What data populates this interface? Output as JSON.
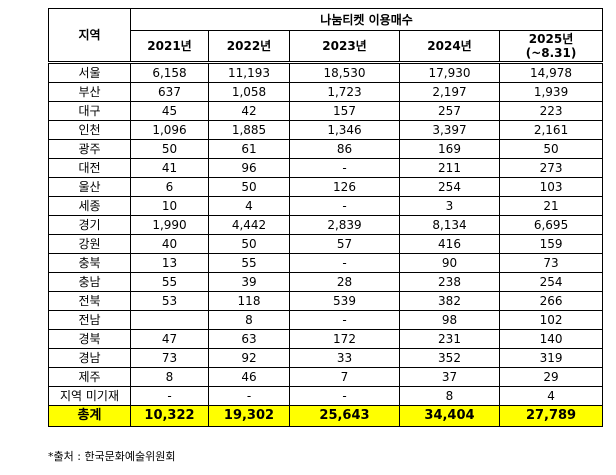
{
  "header": {
    "region": "지역",
    "title": "나눔티켓 이용매수",
    "years": [
      "2021년",
      "2022년",
      "2023년",
      "2024년",
      "2025년"
    ],
    "year_note": "(~8.31)"
  },
  "rows": [
    [
      "서울",
      "6,158",
      "11,193",
      "18,530",
      "17,930",
      "14,978"
    ],
    [
      "부산",
      "637",
      "1,058",
      "1,723",
      "2,197",
      "1,939"
    ],
    [
      "대구",
      "45",
      "42",
      "157",
      "257",
      "223"
    ],
    [
      "인천",
      "1,096",
      "1,885",
      "1,346",
      "3,397",
      "2,161"
    ],
    [
      "광주",
      "50",
      "61",
      "86",
      "169",
      "50"
    ],
    [
      "대전",
      "41",
      "96",
      "-",
      "211",
      "273"
    ],
    [
      "울산",
      "6",
      "50",
      "126",
      "254",
      "103"
    ],
    [
      "세종",
      "10",
      "4",
      "-",
      "3",
      "21"
    ],
    [
      "경기",
      "1,990",
      "4,442",
      "2,839",
      "8,134",
      "6,695"
    ],
    [
      "강원",
      "40",
      "50",
      "57",
      "416",
      "159"
    ],
    [
      "충북",
      "13",
      "55",
      "-",
      "90",
      "73"
    ],
    [
      "충남",
      "55",
      "39",
      "28",
      "238",
      "254"
    ],
    [
      "전북",
      "53",
      "118",
      "539",
      "382",
      "266"
    ],
    [
      "전남",
      null,
      "8",
      "-",
      "98",
      "102"
    ],
    [
      "경북",
      "47",
      "63",
      "172",
      "231",
      "140"
    ],
    [
      "경남",
      "73",
      "92",
      "33",
      "352",
      "319"
    ],
    [
      "제주",
      "8",
      "46",
      "7",
      "37",
      "29"
    ],
    [
      "지역 미기재",
      "-",
      "-",
      "-",
      "8",
      "4"
    ]
  ],
  "total": [
    "총계",
    "10,322",
    "19,302",
    "25,643",
    "34,404",
    "27,789"
  ],
  "footnote": "*출처 : 한국문화예술위원회"
}
